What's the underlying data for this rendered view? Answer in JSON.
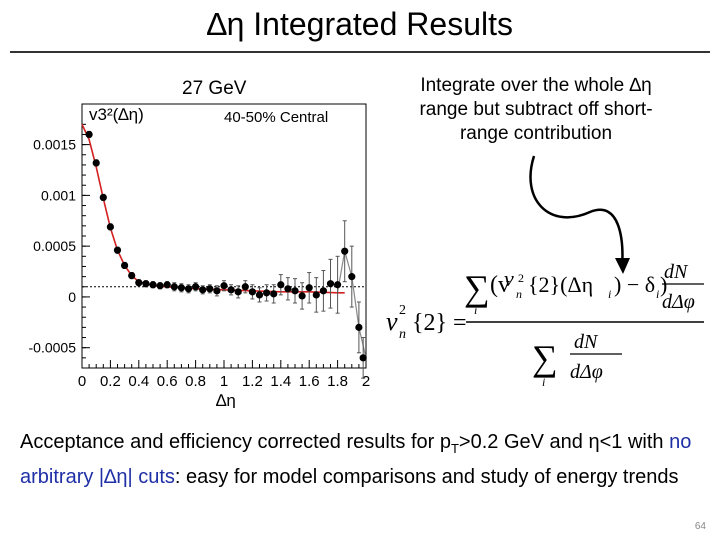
{
  "slide": {
    "title": "∆η Integrated Results",
    "energy_label": "27 GeV",
    "callout": "Integrate over the whole ∆η range but subtract off short-range contribution",
    "bottom_text": {
      "part1": "Acceptance and efficiency corrected results for p",
      "part1_sub": "T",
      "part2": ">0.2 GeV and η<1 with ",
      "highlight": "no arbitrary |∆η| cuts",
      "part3": ": easy for model comparisons and study of energy trends"
    },
    "page_number": "64",
    "colors": {
      "fit_curve": "#d42020",
      "highlight_text": "#1f2fa6",
      "markers": "#000000"
    }
  },
  "chart_data": {
    "type": "scatter",
    "ylabel": "v3²(∆η)",
    "xlabel": "∆η",
    "legend_text": "40-50% Central",
    "xlim": [
      0,
      2
    ],
    "ylim": [
      -0.0007,
      0.0019
    ],
    "x_ticks": [
      0,
      0.2,
      0.4,
      0.6,
      0.8,
      1,
      1.2,
      1.4,
      1.6,
      1.8,
      2
    ],
    "x_tick_labels": [
      "0",
      "0.2",
      "0.4",
      "0.6",
      "0.8",
      "1",
      "1.2",
      "1.4",
      "1.6",
      "1.8",
      "2"
    ],
    "y_ticks": [
      -0.0005,
      0,
      0.0005,
      0.001,
      0.0015
    ],
    "y_tick_labels": [
      "-0.0005",
      "0",
      "0.0005",
      "0.001",
      "0.0015"
    ],
    "baseline_level": 0.0001,
    "points": [
      {
        "x": 0.05,
        "y": 0.0016,
        "err": 3e-05
      },
      {
        "x": 0.1,
        "y": 0.00132,
        "err": 3e-05
      },
      {
        "x": 0.15,
        "y": 0.00098,
        "err": 3e-05
      },
      {
        "x": 0.2,
        "y": 0.00069,
        "err": 3e-05
      },
      {
        "x": 0.25,
        "y": 0.00046,
        "err": 3e-05
      },
      {
        "x": 0.3,
        "y": 0.00031,
        "err": 3e-05
      },
      {
        "x": 0.35,
        "y": 0.00021,
        "err": 3e-05
      },
      {
        "x": 0.4,
        "y": 0.00014,
        "err": 3e-05
      },
      {
        "x": 0.45,
        "y": 0.00013,
        "err": 3e-05
      },
      {
        "x": 0.5,
        "y": 0.00012,
        "err": 3e-05
      },
      {
        "x": 0.55,
        "y": 0.00011,
        "err": 3e-05
      },
      {
        "x": 0.6,
        "y": 0.00012,
        "err": 3e-05
      },
      {
        "x": 0.65,
        "y": 0.0001,
        "err": 4e-05
      },
      {
        "x": 0.7,
        "y": 9e-05,
        "err": 4e-05
      },
      {
        "x": 0.75,
        "y": 8e-05,
        "err": 4e-05
      },
      {
        "x": 0.8,
        "y": 0.0001,
        "err": 4e-05
      },
      {
        "x": 0.85,
        "y": 7e-05,
        "err": 4e-05
      },
      {
        "x": 0.9,
        "y": 8e-05,
        "err": 4e-05
      },
      {
        "x": 0.95,
        "y": 6e-05,
        "err": 5e-05
      },
      {
        "x": 1.0,
        "y": 0.00011,
        "err": 5e-05
      },
      {
        "x": 1.05,
        "y": 7e-05,
        "err": 5e-05
      },
      {
        "x": 1.1,
        "y": 5e-05,
        "err": 6e-05
      },
      {
        "x": 1.15,
        "y": 0.0001,
        "err": 6e-05
      },
      {
        "x": 1.2,
        "y": 5e-05,
        "err": 7e-05
      },
      {
        "x": 1.25,
        "y": 2e-05,
        "err": 7e-05
      },
      {
        "x": 1.3,
        "y": 4e-05,
        "err": 8e-05
      },
      {
        "x": 1.35,
        "y": 3e-05,
        "err": 9e-05
      },
      {
        "x": 1.4,
        "y": 0.00012,
        "err": 0.0001
      },
      {
        "x": 1.45,
        "y": 8e-05,
        "err": 0.00011
      },
      {
        "x": 1.5,
        "y": 6e-05,
        "err": 0.00012
      },
      {
        "x": 1.55,
        "y": 1e-05,
        "err": 0.00013
      },
      {
        "x": 1.6,
        "y": 9e-05,
        "err": 0.00015
      },
      {
        "x": 1.65,
        "y": 2e-05,
        "err": 0.00017
      },
      {
        "x": 1.7,
        "y": 6e-05,
        "err": 0.0002
      },
      {
        "x": 1.75,
        "y": 0.00013,
        "err": 0.00024
      },
      {
        "x": 1.8,
        "y": 0.00012,
        "err": 0.00028
      },
      {
        "x": 1.85,
        "y": 0.00045,
        "err": 0.0003
      },
      {
        "x": 1.9,
        "y": 0.0002,
        "err": 0.0003
      },
      {
        "x": 1.95,
        "y": -0.0003,
        "err": 0.00025
      },
      {
        "x": 1.98,
        "y": -0.0006,
        "err": 0.0002
      }
    ],
    "fit_curve": {
      "x": [
        0.0,
        0.05,
        0.1,
        0.15,
        0.2,
        0.25,
        0.3,
        0.35,
        0.4,
        0.5,
        0.6,
        0.8,
        1.0,
        1.2,
        1.4,
        1.6,
        1.8,
        1.85
      ],
      "y": [
        0.0017,
        0.00155,
        0.00128,
        0.00097,
        0.00068,
        0.00046,
        0.00031,
        0.00021,
        0.00015,
        0.00011,
        0.0001,
        8e-05,
        7e-05,
        6e-05,
        5e-05,
        5e-05,
        4e-05,
        4e-05
      ]
    },
    "fit_tail": {
      "x": [
        1.8,
        1.85,
        1.9,
        1.95,
        2.0
      ],
      "y": [
        5e-05,
        0.00045,
        0.0002,
        -0.0003,
        -0.0006
      ]
    }
  },
  "formula": {
    "lhs": "v",
    "lhs_sub": "n",
    "lhs_sup": "2",
    "lhs_braces": "{2} =",
    "sum_symbol": "∑",
    "index": "i",
    "num_term": "(v",
    "num_term2": "{2}(Δη",
    "num_term3": ") − δ",
    "num_term4": ")",
    "frac_num": "dN",
    "frac_den": "dΔφ"
  }
}
